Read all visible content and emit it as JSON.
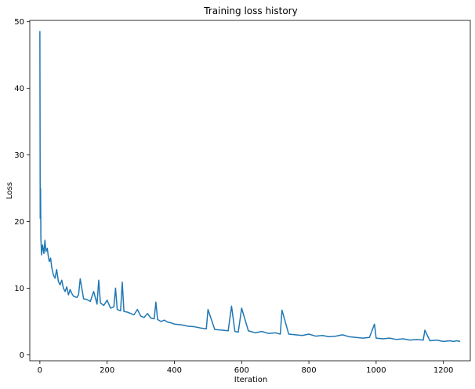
{
  "chart_data": {
    "type": "line",
    "title": "Training loss history",
    "xlabel": "Iteration",
    "ylabel": "Loss",
    "xlim": [
      -30,
      1280
    ],
    "ylim": [
      -0.9,
      50.2
    ],
    "xticks": [
      0,
      200,
      400,
      600,
      800,
      1000,
      1200
    ],
    "yticks": [
      0,
      10,
      20,
      30,
      40,
      50
    ],
    "grid": false,
    "series": [
      {
        "color": "#1f77b4",
        "x": [
          0,
          1,
          2,
          3,
          5,
          8,
          12,
          15,
          18,
          22,
          25,
          28,
          32,
          35,
          40,
          45,
          50,
          55,
          60,
          65,
          70,
          75,
          80,
          85,
          90,
          95,
          100,
          110,
          115,
          120,
          130,
          140,
          150,
          160,
          170,
          175,
          180,
          190,
          200,
          210,
          220,
          225,
          230,
          240,
          245,
          250,
          260,
          270,
          280,
          290,
          300,
          310,
          320,
          330,
          340,
          345,
          350,
          360,
          370,
          380,
          390,
          400,
          420,
          440,
          460,
          480,
          495,
          500,
          520,
          540,
          560,
          570,
          580,
          590,
          600,
          620,
          640,
          660,
          680,
          700,
          715,
          720,
          740,
          760,
          780,
          800,
          820,
          840,
          860,
          880,
          900,
          920,
          940,
          960,
          980,
          995,
          1000,
          1020,
          1040,
          1060,
          1080,
          1100,
          1120,
          1140,
          1145,
          1160,
          1180,
          1200,
          1220,
          1230,
          1240,
          1250
        ],
        "values": [
          48.6,
          20.5,
          25.0,
          17.5,
          15.0,
          16.5,
          15.2,
          17.2,
          15.5,
          16.0,
          14.8,
          14.0,
          14.5,
          13.2,
          12.0,
          11.5,
          12.8,
          11.0,
          10.5,
          11.2,
          10.0,
          9.5,
          10.2,
          9.0,
          9.8,
          9.2,
          8.8,
          8.6,
          9.0,
          11.4,
          8.4,
          8.3,
          8.0,
          9.5,
          7.6,
          11.2,
          7.8,
          7.4,
          8.2,
          7.0,
          7.2,
          10.0,
          6.8,
          6.6,
          10.9,
          6.5,
          6.4,
          6.2,
          6.0,
          6.8,
          5.8,
          5.6,
          6.2,
          5.5,
          5.4,
          7.9,
          5.3,
          5.0,
          5.2,
          4.9,
          4.8,
          4.6,
          4.5,
          4.3,
          4.2,
          4.0,
          3.9,
          6.8,
          3.8,
          3.7,
          3.6,
          7.3,
          3.5,
          3.4,
          7.0,
          3.6,
          3.3,
          3.5,
          3.2,
          3.3,
          3.1,
          6.7,
          3.1,
          3.0,
          2.9,
          3.1,
          2.8,
          2.9,
          2.7,
          2.8,
          3.0,
          2.7,
          2.6,
          2.5,
          2.6,
          4.6,
          2.5,
          2.4,
          2.5,
          2.3,
          2.4,
          2.2,
          2.3,
          2.2,
          3.7,
          2.1,
          2.2,
          2.0,
          2.1,
          2.0,
          2.1,
          2.0
        ]
      }
    ]
  }
}
